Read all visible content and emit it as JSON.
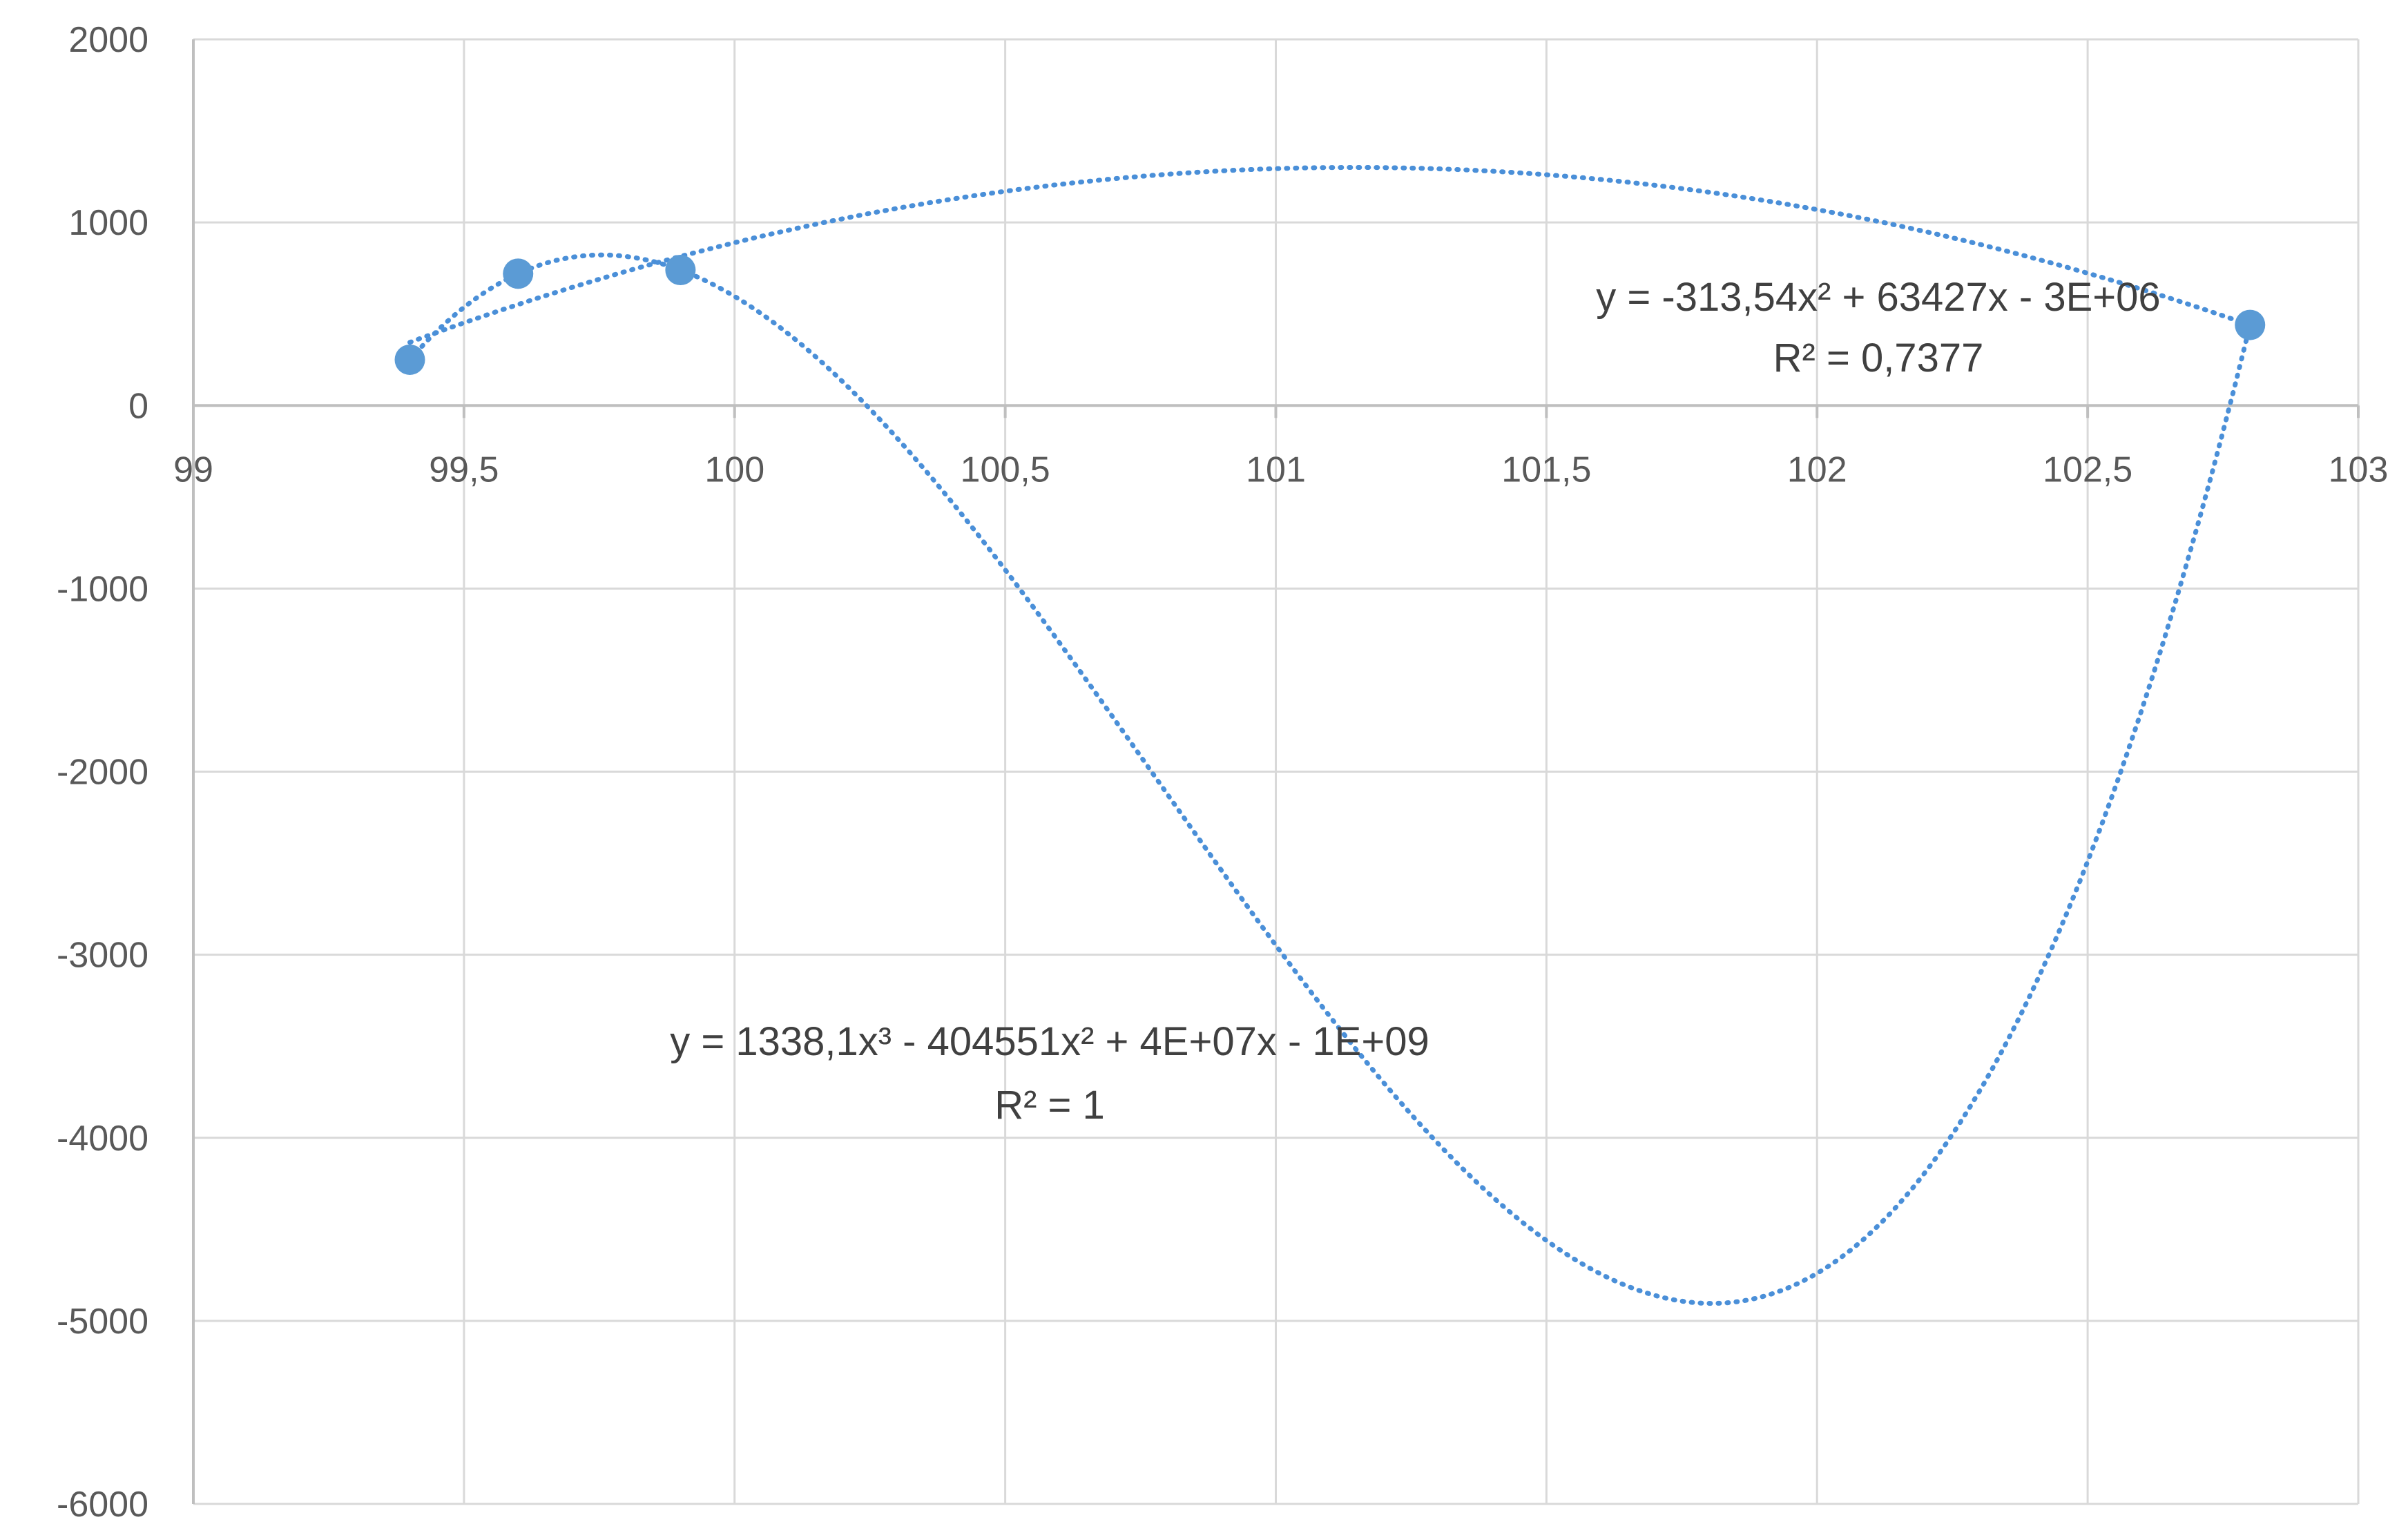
{
  "chart_data": {
    "type": "scatter",
    "title": "",
    "xlabel": "",
    "ylabel": "",
    "xlim": [
      99,
      103
    ],
    "ylim": [
      -6000,
      2000
    ],
    "x_ticks": [
      99,
      99.5,
      100,
      100.5,
      101,
      101.5,
      102,
      102.5,
      103
    ],
    "x_tick_labels": [
      "99",
      "99,5",
      "100",
      "100,5",
      "101",
      "101,5",
      "102",
      "102,5",
      "103"
    ],
    "y_ticks": [
      2000,
      1000,
      0,
      -1000,
      -2000,
      -3000,
      -4000,
      -5000,
      -6000
    ],
    "y_tick_labels": [
      "2000",
      "1000",
      "0",
      "-1000",
      "-2000",
      "-3000",
      "-4000",
      "-5000",
      "-6000"
    ],
    "grid": true,
    "legend": "none",
    "points": [
      {
        "x": 99.4,
        "y": 250
      },
      {
        "x": 99.6,
        "y": 720
      },
      {
        "x": 99.9,
        "y": 740
      },
      {
        "x": 102.8,
        "y": 440
      }
    ],
    "trendlines": [
      {
        "type": "polynomial",
        "order": 2,
        "equation": "y = -313,54x² + 63427x - 3E+06",
        "r_squared": "R² = 0,7377"
      },
      {
        "type": "polynomial",
        "order": 3,
        "equation": "y = 1338,1x³ - 404551x² + 4E+07x - 1E+09",
        "r_squared": "R² = 1"
      }
    ],
    "colors": {
      "series": "#5b9bd5",
      "trendline": "#4a8fd8",
      "grid": "#d9d9d9",
      "axis": "#bfbfbf",
      "text": "#595959"
    }
  }
}
